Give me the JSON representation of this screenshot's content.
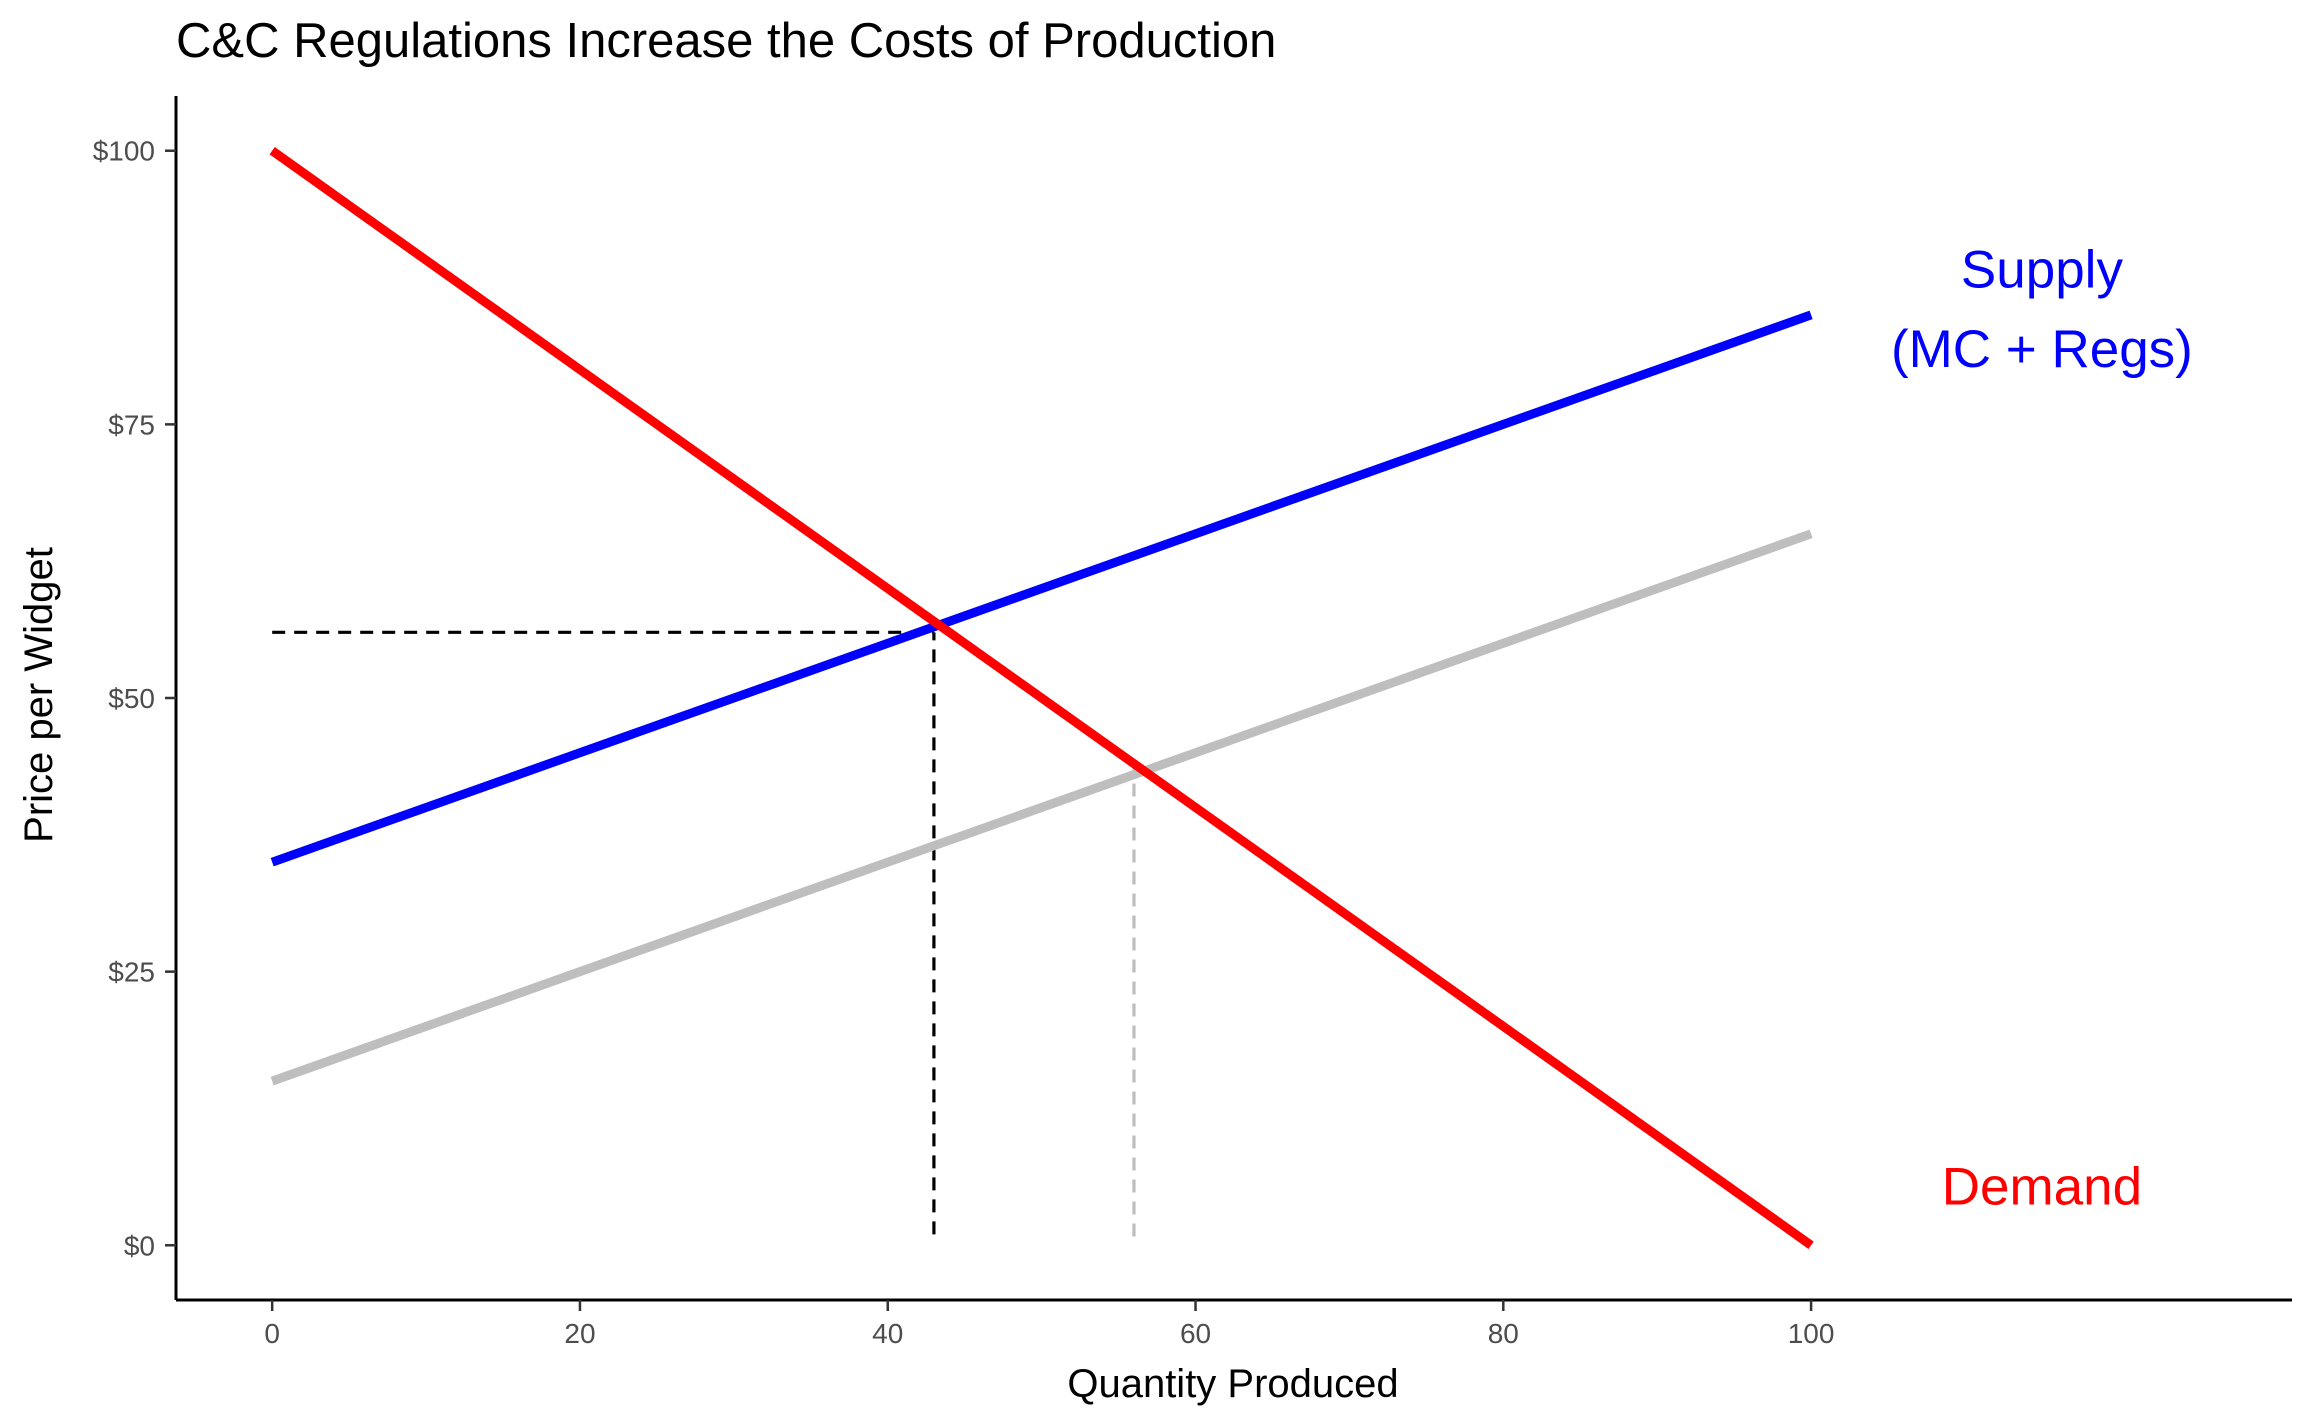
{
  "chart_data": {
    "type": "line",
    "title": "C&C Regulations Increase the Costs of Production",
    "xlabel": "Quantity Produced",
    "ylabel": "Price per Widget",
    "xlim": [
      -6.25,
      131.25
    ],
    "ylim": [
      -5,
      105
    ],
    "x_ticks": [
      0,
      20,
      40,
      60,
      80,
      100
    ],
    "x_tick_labels": [
      "0",
      "20",
      "40",
      "60",
      "80",
      "100"
    ],
    "y_ticks": [
      0,
      25,
      50,
      75,
      100
    ],
    "y_tick_labels": [
      "$0",
      "$25",
      "$50",
      "$75",
      "$100"
    ],
    "grid": false,
    "series": [
      {
        "name": "Supply (MC + Regs)",
        "color": "#0000ff",
        "x": [
          0,
          100
        ],
        "y": [
          35,
          85
        ]
      },
      {
        "name": "",
        "color": "#bebebe",
        "x": [
          0,
          100
        ],
        "y": [
          15,
          65
        ]
      },
      {
        "name": "Demand",
        "color": "#ff0000",
        "x": [
          0,
          100
        ],
        "y": [
          100,
          0
        ]
      }
    ],
    "guides": [
      {
        "color": "#000000",
        "from": [
          0,
          56
        ],
        "to": [
          43,
          56
        ]
      },
      {
        "color": "#000000",
        "from": [
          43,
          1
        ],
        "to": [
          43,
          56
        ]
      },
      {
        "color": "#bebebe",
        "from": [
          56,
          0.8
        ],
        "to": [
          56,
          44
        ]
      }
    ],
    "annotations": [
      {
        "id": "supply-label-1",
        "text": "Supply",
        "color": "#0000ff",
        "x": 115,
        "y": 88.8
      },
      {
        "id": "supply-label-2",
        "text": "(MC + Regs)",
        "color": "#0000ff",
        "x": 115,
        "y": 81.5
      },
      {
        "id": "demand-label",
        "text": "Demand",
        "color": "#ff0000",
        "x": 115,
        "y": 5
      }
    ]
  }
}
